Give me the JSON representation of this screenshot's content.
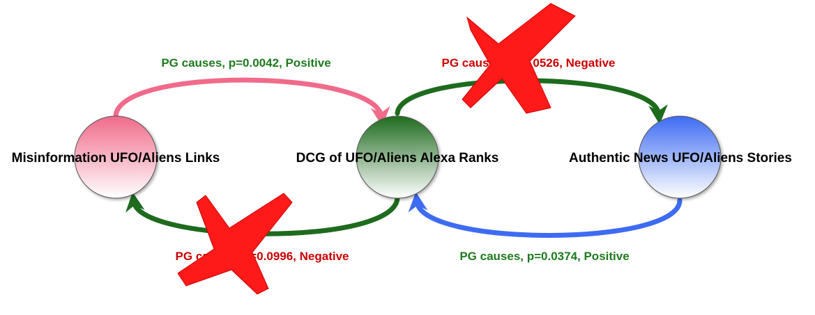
{
  "nodes": {
    "misinfo": {
      "label": "Misinformation UFO/Aliens Links",
      "color": "#f06b8a"
    },
    "dcg": {
      "label": "DCG of UFO/Aliens Alexa Ranks",
      "color": "#1f6b1f"
    },
    "authentic": {
      "label": "Authentic News UFO/Aliens Stories",
      "color": "#3d6bf2"
    }
  },
  "edges": {
    "misinfo_to_dcg": {
      "label": "PG causes, p=0.0042, Positive",
      "label_color": "#1e7a1e",
      "stroke": "#f06b8a",
      "crossed_out": false
    },
    "dcg_to_authentic": {
      "label": "PG causes, p=0.0526, Negative",
      "label_color": "#cc0000",
      "stroke": "#1e6b1e",
      "crossed_out": true
    },
    "dcg_to_misinfo": {
      "label": "PG causes, p=0.0996, Negative",
      "label_color": "#cc0000",
      "stroke": "#1e6b1e",
      "crossed_out": true
    },
    "authentic_to_dcg": {
      "label": "PG causes, p=0.0374, Positive",
      "label_color": "#1e7a1e",
      "stroke": "#3d6bf2",
      "crossed_out": false
    }
  },
  "cross_mark_color": "#ff1a1a"
}
